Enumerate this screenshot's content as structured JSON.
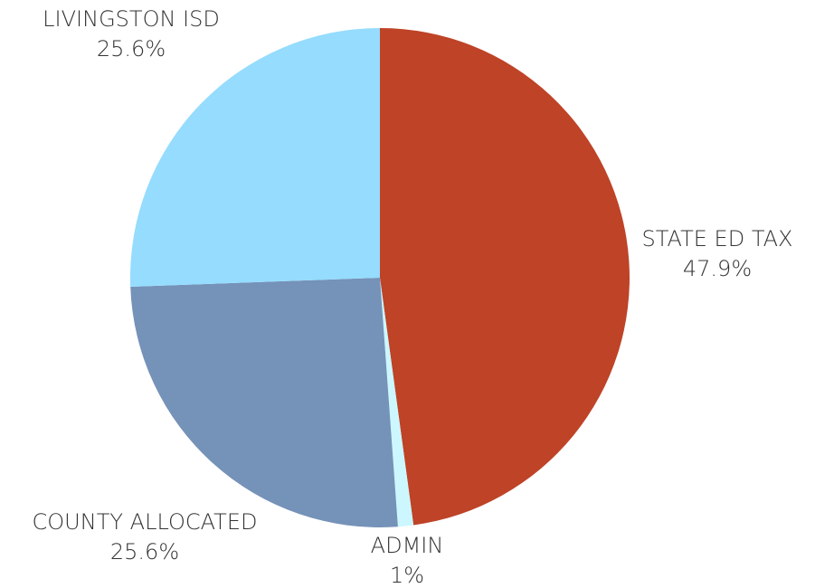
{
  "chart_data": {
    "type": "pie",
    "categories": [
      "STATE ED TAX",
      "ADMIN",
      "COUNTY ALLOCATED",
      "LIVINGSTON ISD"
    ],
    "values": [
      47.9,
      1,
      25.6,
      25.6
    ],
    "value_labels": [
      "47.9%",
      "1%",
      "25.6%",
      "25.6%"
    ],
    "colors": [
      "#be4327",
      "#ccf7ff",
      "#7592b8",
      "#95dcfe"
    ]
  }
}
